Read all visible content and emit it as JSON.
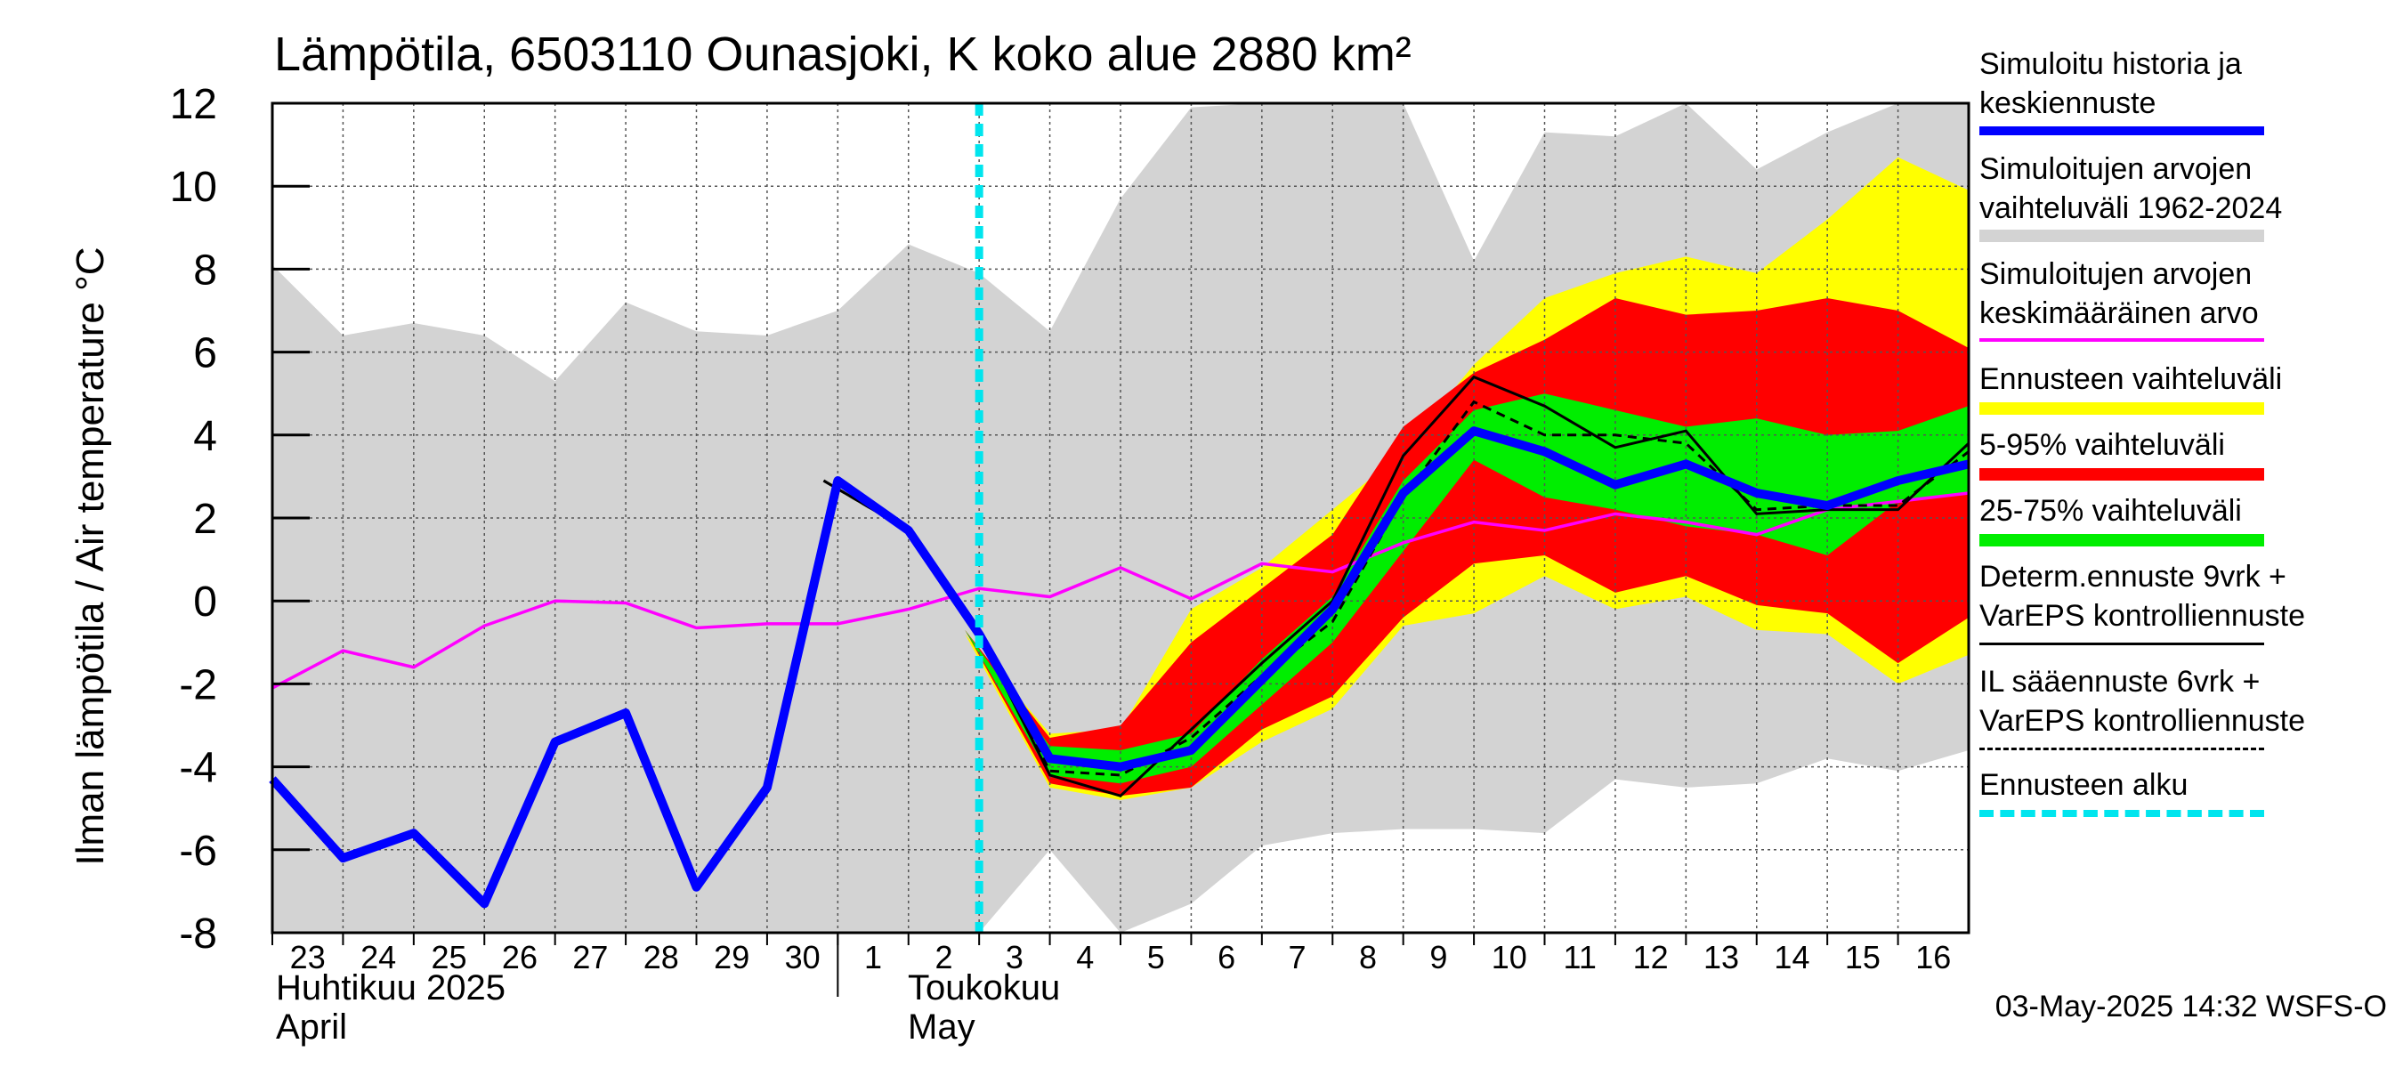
{
  "title": "Lämpötila, 6503110 Ounasjoki, K koko alue 2880 km²",
  "y_axis_label": "Ilman lämpötila / Air temperature   °C",
  "x_month_labels": [
    {
      "fi": "Huhtikuu  2025",
      "en": "April"
    },
    {
      "fi": "Toukokuu",
      "en": "May"
    }
  ],
  "footer": "03-May-2025 14:32 WSFS-O",
  "legend": [
    {
      "lines": [
        "Simuloitu historia ja",
        "keskiennuste"
      ],
      "color": "#0000ff",
      "style": "thick-line"
    },
    {
      "lines": [
        "Simuloitujen arvojen",
        "vaihteluväli 1962-2024"
      ],
      "color": "#d3d3d3",
      "style": "band"
    },
    {
      "lines": [
        "Simuloitujen arvojen",
        "keskimääräinen arvo"
      ],
      "color": "#ff00ff",
      "style": "line"
    },
    {
      "lines": [
        "Ennusteen vaihteluväli"
      ],
      "color": "#ffff00",
      "style": "band"
    },
    {
      "lines": [
        "5-95% vaihteluväli"
      ],
      "color": "#ff0000",
      "style": "band"
    },
    {
      "lines": [
        "25-75% vaihteluväli"
      ],
      "color": "#00ee00",
      "style": "band"
    },
    {
      "lines": [
        "Determ.ennuste 9vrk +",
        "VarEPS kontrolliennuste"
      ],
      "color": "#000000",
      "style": "thin-line"
    },
    {
      "lines": [
        "IL sääennuste 6vrk  +",
        "  VarEPS kontrolliennuste"
      ],
      "color": "#000000",
      "style": "dashed-line"
    },
    {
      "lines": [
        "Ennusteen alku"
      ],
      "color": "#00e5ee",
      "style": "dotted-thick"
    }
  ],
  "chart_data": {
    "type": "line",
    "ylim": [
      -8,
      12
    ],
    "yticks": [
      -8,
      -6,
      -4,
      -2,
      0,
      2,
      4,
      6,
      8,
      10,
      12
    ],
    "xlim": [
      0,
      24
    ],
    "x_tick_labels": [
      "23",
      "24",
      "25",
      "26",
      "27",
      "28",
      "29",
      "30",
      "1",
      "2",
      "3",
      "4",
      "5",
      "6",
      "7",
      "8",
      "9",
      "10",
      "11",
      "12",
      "13",
      "14",
      "15",
      "16"
    ],
    "forecast_start_x": 10,
    "grid": true,
    "series": {
      "hist_range_upper": [
        [
          0,
          8.1
        ],
        [
          1,
          6.4
        ],
        [
          2,
          6.7
        ],
        [
          3,
          6.4
        ],
        [
          4,
          5.3
        ],
        [
          5,
          7.2
        ],
        [
          6,
          6.5
        ],
        [
          7,
          6.4
        ],
        [
          8,
          7
        ],
        [
          9,
          8.6
        ],
        [
          10,
          7.9
        ],
        [
          11,
          6.5
        ],
        [
          12,
          9.7
        ],
        [
          13,
          11.9
        ],
        [
          14,
          12
        ],
        [
          15,
          12
        ],
        [
          16,
          12
        ],
        [
          17,
          8.2
        ],
        [
          18,
          11.3
        ],
        [
          19,
          11.2
        ],
        [
          20,
          12
        ],
        [
          21,
          10.4
        ],
        [
          22,
          11.3
        ],
        [
          23,
          12
        ],
        [
          24,
          12
        ]
      ],
      "hist_range_lower": [
        [
          0,
          -8
        ],
        [
          1,
          -8
        ],
        [
          2,
          -8
        ],
        [
          3,
          -8
        ],
        [
          4,
          -8
        ],
        [
          5,
          -8
        ],
        [
          6,
          -8
        ],
        [
          7,
          -8
        ],
        [
          8,
          -8
        ],
        [
          9,
          -8
        ],
        [
          10,
          -8
        ],
        [
          11,
          -6
        ],
        [
          12,
          -8
        ],
        [
          13,
          -7.3
        ],
        [
          14,
          -5.9
        ],
        [
          15,
          -5.6
        ],
        [
          16,
          -5.5
        ],
        [
          17,
          -5.5
        ],
        [
          18,
          -5.6
        ],
        [
          19,
          -4.3
        ],
        [
          20,
          -4.5
        ],
        [
          21,
          -4.4
        ],
        [
          22,
          -3.8
        ],
        [
          23,
          -4.1
        ],
        [
          24,
          -3.6
        ]
      ],
      "ens_range_upper": [
        [
          9.8,
          -0.8
        ],
        [
          11,
          -3.2
        ],
        [
          12,
          -3.1
        ],
        [
          13,
          -0.2
        ],
        [
          14,
          0.8
        ],
        [
          15,
          2.2
        ],
        [
          16,
          3.6
        ],
        [
          17,
          5.7
        ],
        [
          18,
          7.3
        ],
        [
          19,
          7.9
        ],
        [
          20,
          8.3
        ],
        [
          21,
          7.9
        ],
        [
          22,
          9.2
        ],
        [
          23,
          10.7
        ],
        [
          24,
          9.9
        ]
      ],
      "ens_range_lower": [
        [
          9.8,
          -0.8
        ],
        [
          11,
          -4.5
        ],
        [
          12,
          -4.8
        ],
        [
          13,
          -4.5
        ],
        [
          14,
          -3.4
        ],
        [
          15,
          -2.6
        ],
        [
          16,
          -0.6
        ],
        [
          17,
          -0.3
        ],
        [
          18,
          0.6
        ],
        [
          19,
          -0.2
        ],
        [
          20,
          0.1
        ],
        [
          21,
          -0.7
        ],
        [
          22,
          -0.8
        ],
        [
          23,
          -2.0
        ],
        [
          24,
          -1.3
        ]
      ],
      "p5_95_upper": [
        [
          9.8,
          -0.7
        ],
        [
          11,
          -3.3
        ],
        [
          12,
          -3.0
        ],
        [
          13,
          -1.0
        ],
        [
          14,
          0.3
        ],
        [
          15,
          1.6
        ],
        [
          16,
          4.2
        ],
        [
          17,
          5.5
        ],
        [
          18,
          6.3
        ],
        [
          19,
          7.3
        ],
        [
          20,
          6.9
        ],
        [
          21,
          7.0
        ],
        [
          22,
          7.3
        ],
        [
          23,
          7.0
        ],
        [
          24,
          6.1
        ]
      ],
      "p5_95_lower": [
        [
          9.8,
          -0.7
        ],
        [
          11,
          -4.4
        ],
        [
          12,
          -4.7
        ],
        [
          13,
          -4.5
        ],
        [
          14,
          -3.1
        ],
        [
          15,
          -2.3
        ],
        [
          16,
          -0.4
        ],
        [
          17,
          0.9
        ],
        [
          18,
          1.1
        ],
        [
          19,
          0.2
        ],
        [
          20,
          0.6
        ],
        [
          21,
          -0.1
        ],
        [
          22,
          -0.3
        ],
        [
          23,
          -1.5
        ],
        [
          24,
          -0.4
        ]
      ],
      "p25_75_upper": [
        [
          9.8,
          -0.7
        ],
        [
          11,
          -3.5
        ],
        [
          12,
          -3.6
        ],
        [
          13,
          -3.2
        ],
        [
          14,
          -1.4
        ],
        [
          15,
          0.1
        ],
        [
          16,
          2.9
        ],
        [
          17,
          4.6
        ],
        [
          18,
          5.0
        ],
        [
          19,
          4.6
        ],
        [
          20,
          4.2
        ],
        [
          21,
          4.4
        ],
        [
          22,
          4.0
        ],
        [
          23,
          4.1
        ],
        [
          24,
          4.7
        ]
      ],
      "p25_75_lower": [
        [
          9.8,
          -0.7
        ],
        [
          11,
          -4.2
        ],
        [
          12,
          -4.4
        ],
        [
          13,
          -4.0
        ],
        [
          14,
          -2.5
        ],
        [
          15,
          -1.0
        ],
        [
          16,
          1.2
        ],
        [
          17,
          3.4
        ],
        [
          18,
          2.5
        ],
        [
          19,
          2.2
        ],
        [
          20,
          1.8
        ],
        [
          21,
          1.6
        ],
        [
          22,
          1.1
        ],
        [
          23,
          2.4
        ],
        [
          24,
          2.6
        ]
      ],
      "sim_mean": [
        [
          0,
          -2.1
        ],
        [
          1,
          -1.2
        ],
        [
          2,
          -1.6
        ],
        [
          3,
          -0.6
        ],
        [
          4,
          0
        ],
        [
          5,
          -0.05
        ],
        [
          6,
          -0.65
        ],
        [
          7,
          -0.55
        ],
        [
          8,
          -0.55
        ],
        [
          9,
          -0.2
        ],
        [
          10,
          0.3
        ],
        [
          11,
          0.1
        ],
        [
          12,
          0.8
        ],
        [
          13,
          0.05
        ],
        [
          14,
          0.9
        ],
        [
          15,
          0.7
        ],
        [
          16,
          1.4
        ],
        [
          17,
          1.9
        ],
        [
          18,
          1.7
        ],
        [
          19,
          2.1
        ],
        [
          20,
          1.9
        ],
        [
          21,
          1.6
        ],
        [
          22,
          2.2
        ],
        [
          23,
          2.4
        ],
        [
          24,
          2.6
        ]
      ],
      "simulated_history_and_median": [
        [
          0,
          -4.3
        ],
        [
          1,
          -6.2
        ],
        [
          2,
          -5.6
        ],
        [
          3,
          -7.3
        ],
        [
          4,
          -3.4
        ],
        [
          5,
          -2.7
        ],
        [
          6,
          -6.9
        ],
        [
          7,
          -4.5
        ],
        [
          8,
          2.9
        ],
        [
          9,
          1.7
        ],
        [
          10,
          -0.8
        ],
        [
          11,
          -3.8
        ],
        [
          12,
          -4.0
        ],
        [
          13,
          -3.6
        ],
        [
          14,
          -1.9
        ],
        [
          15,
          -0.2
        ],
        [
          16,
          2.6
        ],
        [
          17,
          4.1
        ],
        [
          18,
          3.6
        ],
        [
          19,
          2.8
        ],
        [
          20,
          3.3
        ],
        [
          21,
          2.6
        ],
        [
          22,
          2.3
        ],
        [
          23,
          2.9
        ],
        [
          24,
          3.3
        ]
      ],
      "deterministic_forecast": [
        [
          7.8,
          2.9
        ],
        [
          9,
          1.7
        ],
        [
          10,
          -0.8
        ],
        [
          11,
          -4.2
        ],
        [
          12,
          -4.7
        ],
        [
          13,
          -3.1
        ],
        [
          14,
          -1.5
        ],
        [
          15,
          0
        ],
        [
          16,
          3.5
        ],
        [
          17,
          5.4
        ],
        [
          18,
          4.7
        ],
        [
          19,
          3.7
        ],
        [
          20,
          4.1
        ],
        [
          21,
          2.1
        ],
        [
          22,
          2.2
        ],
        [
          23,
          2.2
        ],
        [
          24,
          3.8
        ]
      ],
      "il_weather_forecast": [
        [
          7.8,
          2.9
        ],
        [
          9,
          1.7
        ],
        [
          10,
          -0.8
        ],
        [
          11,
          -4.1
        ],
        [
          12,
          -4.2
        ],
        [
          13,
          -3.3
        ],
        [
          14,
          -1.8
        ],
        [
          15,
          -0.5
        ],
        [
          16,
          2.5
        ],
        [
          17,
          4.8
        ],
        [
          18,
          4.0
        ],
        [
          19,
          4.0
        ],
        [
          20,
          3.8
        ],
        [
          21,
          2.2
        ],
        [
          22,
          2.3
        ],
        [
          23,
          2.3
        ],
        [
          24,
          3.6
        ]
      ]
    },
    "colors": {
      "hist_range": "#d3d3d3",
      "ens_range": "#ffff00",
      "p5_95": "#ff0000",
      "p25_75": "#00ee00",
      "sim_mean": "#ff00ff",
      "simulated_history_and_median": "#0000ff",
      "deterministic_forecast": "#000000",
      "il_weather_forecast": "#000000",
      "forecast_start": "#00e5ee"
    }
  }
}
